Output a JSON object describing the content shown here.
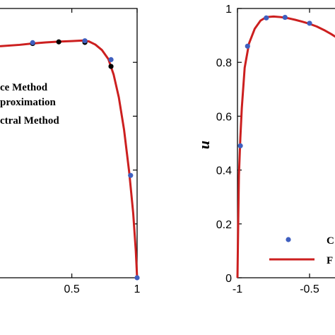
{
  "chart_data": [
    {
      "type": "line",
      "title": "",
      "xlabel": "",
      "ylabel": "",
      "xlim": [
        -0.05,
        1.0
      ],
      "ylim": [
        0,
        1
      ],
      "x_tick_labels": [
        "0.5",
        "1"
      ],
      "legend_position": "center",
      "legend_entries": [
        "ce Method",
        "proximation",
        "ctral Method"
      ],
      "series": [
        {
          "marker": "circle",
          "color": "#000000",
          "points": [
            [
              0.2,
              0.87
            ],
            [
              0.4,
              0.876
            ],
            [
              0.6,
              0.874
            ],
            [
              0.8,
              0.785
            ]
          ]
        },
        {
          "marker": "circle",
          "color": "#3f5fbf",
          "points": [
            [
              0.2,
              0.873
            ],
            [
              0.6,
              0.88
            ],
            [
              0.8,
              0.81
            ],
            [
              0.95,
              0.38
            ],
            [
              1.0,
              0.0
            ]
          ]
        },
        {
          "marker": "line",
          "color": "#cc1f1f",
          "points": [
            [
              -0.05,
              0.86
            ],
            [
              0.1,
              0.865
            ],
            [
              0.2,
              0.87
            ],
            [
              0.3,
              0.874
            ],
            [
              0.4,
              0.877
            ],
            [
              0.5,
              0.879
            ],
            [
              0.58,
              0.881
            ],
            [
              0.63,
              0.878
            ],
            [
              0.68,
              0.866
            ],
            [
              0.73,
              0.846
            ],
            [
              0.78,
              0.812
            ],
            [
              0.82,
              0.755
            ],
            [
              0.86,
              0.67
            ],
            [
              0.9,
              0.55
            ],
            [
              0.94,
              0.39
            ],
            [
              0.97,
              0.24
            ],
            [
              0.99,
              0.1
            ],
            [
              1.0,
              0.0
            ]
          ]
        }
      ]
    },
    {
      "type": "line",
      "title": "",
      "xlabel": "",
      "ylabel": "u",
      "xlim": [
        -1,
        -0.2
      ],
      "ylim": [
        0,
        1
      ],
      "x_tick_labels": [
        "-1",
        "-0.5"
      ],
      "y_tick_labels": [
        "0",
        "0.2",
        "0.4",
        "0.6",
        "0.8",
        "1"
      ],
      "legend_position": "bottom-right",
      "legend_entries": [
        "C",
        "F"
      ],
      "series": [
        {
          "marker": "circle",
          "color": "#3f5fbf",
          "points": [
            [
              -0.98,
              0.49
            ],
            [
              -0.93,
              0.86
            ],
            [
              -0.8,
              0.965
            ],
            [
              -0.67,
              0.967
            ],
            [
              -0.5,
              0.945
            ]
          ]
        },
        {
          "marker": "line",
          "color": "#cc1f1f",
          "points": [
            [
              -1.0,
              0.0
            ],
            [
              -0.995,
              0.2
            ],
            [
              -0.99,
              0.38
            ],
            [
              -0.98,
              0.52
            ],
            [
              -0.97,
              0.63
            ],
            [
              -0.95,
              0.78
            ],
            [
              -0.92,
              0.87
            ],
            [
              -0.88,
              0.925
            ],
            [
              -0.84,
              0.955
            ],
            [
              -0.8,
              0.968
            ],
            [
              -0.75,
              0.97
            ],
            [
              -0.7,
              0.968
            ],
            [
              -0.65,
              0.964
            ],
            [
              -0.6,
              0.958
            ],
            [
              -0.55,
              0.951
            ],
            [
              -0.5,
              0.943
            ],
            [
              -0.45,
              0.933
            ],
            [
              -0.4,
              0.92
            ],
            [
              -0.35,
              0.905
            ],
            [
              -0.3,
              0.888
            ],
            [
              -0.25,
              0.87
            ],
            [
              -0.2,
              0.85
            ]
          ]
        }
      ]
    }
  ]
}
